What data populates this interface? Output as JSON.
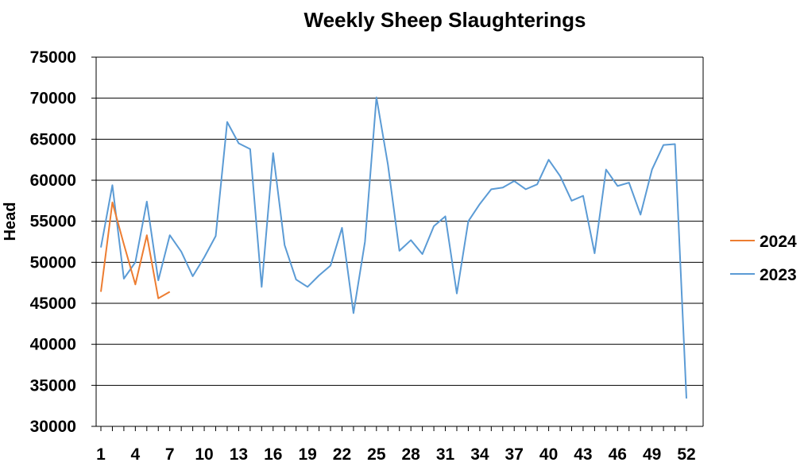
{
  "chart_data": {
    "type": "line",
    "title": "Weekly Sheep Slaughterings",
    "xlabel": "",
    "ylabel": "Head",
    "ylim": [
      30000,
      75000
    ],
    "xlim": [
      1,
      52
    ],
    "yticks": [
      "30000",
      "35000",
      "40000",
      "45000",
      "50000",
      "55000",
      "60000",
      "65000",
      "70000",
      "75000"
    ],
    "xticks": [
      "1",
      "4",
      "7",
      "10",
      "13",
      "16",
      "19",
      "22",
      "25",
      "28",
      "31",
      "34",
      "37",
      "40",
      "43",
      "46",
      "49",
      "52"
    ],
    "grid": "horizontal",
    "legend_position": "right",
    "series": [
      {
        "name": "2024",
        "color": "#ED7D31",
        "x": [
          1,
          2,
          3,
          4,
          5,
          6,
          7
        ],
        "values": [
          46400,
          57300,
          52200,
          47300,
          53300,
          45600,
          46400
        ]
      },
      {
        "name": "2023",
        "color": "#5B9BD5",
        "x": [
          1,
          2,
          3,
          4,
          5,
          6,
          7,
          8,
          9,
          10,
          11,
          12,
          13,
          14,
          15,
          16,
          17,
          18,
          19,
          20,
          21,
          22,
          23,
          24,
          25,
          26,
          27,
          28,
          29,
          30,
          31,
          32,
          33,
          34,
          35,
          36,
          37,
          38,
          39,
          40,
          41,
          42,
          43,
          44,
          45,
          46,
          47,
          48,
          49,
          50,
          51,
          52
        ],
        "values": [
          51800,
          59400,
          48000,
          50000,
          57400,
          47800,
          53300,
          51300,
          48300,
          50600,
          53200,
          67100,
          64500,
          63800,
          47000,
          63300,
          52100,
          47900,
          47000,
          48400,
          49600,
          54200,
          43800,
          52500,
          70100,
          61900,
          51400,
          52700,
          51000,
          54400,
          55600,
          46200,
          55000,
          57100,
          58900,
          59100,
          59900,
          58900,
          59500,
          62500,
          60500,
          57500,
          58100,
          51100,
          61300,
          59300,
          59700,
          55800,
          61300,
          64300,
          64400,
          33400
        ]
      }
    ]
  }
}
